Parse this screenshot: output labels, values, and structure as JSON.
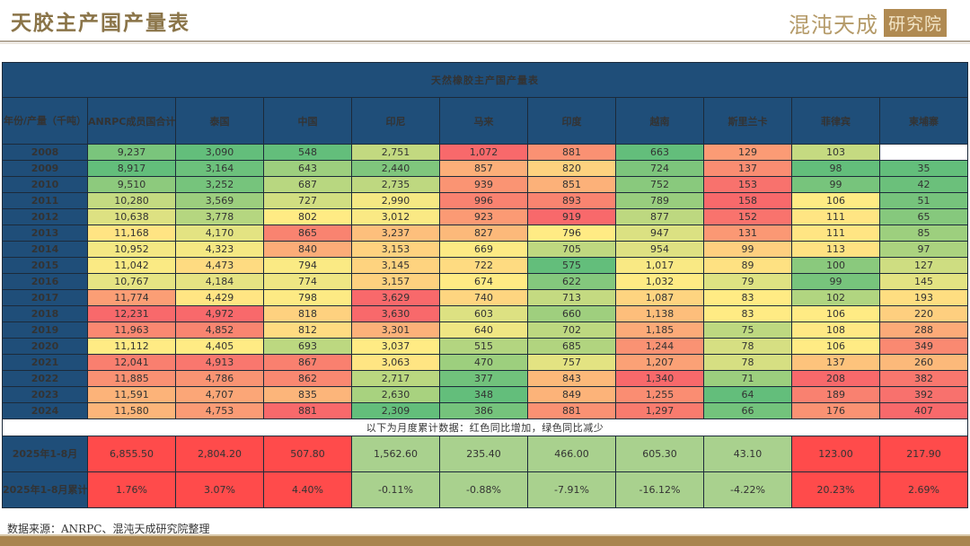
{
  "header": {
    "title": "天胶主产国产量表",
    "logo_text": "混沌天成",
    "logo_box": "研究院"
  },
  "table": {
    "banner": "天然橡胶主产国产量表",
    "corner_label": "年份/产量（千吨）",
    "columns": [
      "ANRPC成员国合计",
      "泰国",
      "中国",
      "印尼",
      "马来",
      "印度",
      "越南",
      "斯里兰卡",
      "菲律宾",
      "柬埔寨"
    ],
    "rows": [
      {
        "year": "2008",
        "values": [
          "9,237",
          "3,090",
          "548",
          "2,751",
          "1,072",
          "881",
          "663",
          "129",
          "103",
          ""
        ]
      },
      {
        "year": "2009",
        "values": [
          "8,917",
          "3,164",
          "643",
          "2,440",
          "857",
          "820",
          "724",
          "137",
          "98",
          "35"
        ]
      },
      {
        "year": "2010",
        "values": [
          "9,510",
          "3,252",
          "687",
          "2,735",
          "939",
          "851",
          "752",
          "153",
          "99",
          "42"
        ]
      },
      {
        "year": "2011",
        "values": [
          "10,280",
          "3,569",
          "727",
          "2,990",
          "996",
          "893",
          "789",
          "158",
          "106",
          "51"
        ]
      },
      {
        "year": "2012",
        "values": [
          "10,638",
          "3,778",
          "802",
          "3,012",
          "923",
          "919",
          "877",
          "152",
          "111",
          "65"
        ]
      },
      {
        "year": "2013",
        "values": [
          "11,168",
          "4,170",
          "865",
          "3,237",
          "827",
          "796",
          "947",
          "131",
          "111",
          "85"
        ]
      },
      {
        "year": "2014",
        "values": [
          "10,952",
          "4,323",
          "840",
          "3,153",
          "669",
          "705",
          "954",
          "99",
          "113",
          "97"
        ]
      },
      {
        "year": "2015",
        "values": [
          "11,042",
          "4,473",
          "794",
          "3,145",
          "722",
          "575",
          "1,017",
          "89",
          "100",
          "127"
        ]
      },
      {
        "year": "2016",
        "values": [
          "10,767",
          "4,184",
          "774",
          "3,157",
          "674",
          "622",
          "1,032",
          "79",
          "99",
          "145"
        ]
      },
      {
        "year": "2017",
        "values": [
          "11,774",
          "4,429",
          "798",
          "3,629",
          "740",
          "713",
          "1,087",
          "83",
          "102",
          "193"
        ]
      },
      {
        "year": "2018",
        "values": [
          "12,231",
          "4,972",
          "818",
          "3,630",
          "603",
          "660",
          "1,138",
          "83",
          "106",
          "220"
        ]
      },
      {
        "year": "2019",
        "values": [
          "11,963",
          "4,852",
          "812",
          "3,301",
          "640",
          "702",
          "1,185",
          "75",
          "108",
          "288"
        ]
      },
      {
        "year": "2020",
        "values": [
          "11,112",
          "4,405",
          "693",
          "3,037",
          "515",
          "685",
          "1,244",
          "78",
          "106",
          "349"
        ]
      },
      {
        "year": "2021",
        "values": [
          "12,041",
          "4,913",
          "867",
          "3,063",
          "470",
          "757",
          "1,207",
          "78",
          "137",
          "260"
        ]
      },
      {
        "year": "2022",
        "values": [
          "11,885",
          "4,786",
          "862",
          "2,717",
          "377",
          "843",
          "1,340",
          "71",
          "208",
          "382"
        ]
      },
      {
        "year": "2023",
        "values": [
          "11,591",
          "4,707",
          "835",
          "2,630",
          "348",
          "849",
          "1,255",
          "64",
          "189",
          "392"
        ]
      },
      {
        "year": "2024",
        "values": [
          "11,580",
          "4,753",
          "881",
          "2,309",
          "386",
          "881",
          "1,297",
          "66",
          "176",
          "407"
        ]
      }
    ],
    "note": "以下为月度累计数据：红色同比增加，绿色同比减少",
    "cumulative": {
      "label": "2025年1-8月",
      "values": [
        "6,855.50",
        "2,804.20",
        "507.80",
        "1,562.60",
        "235.40",
        "466.00",
        "605.30",
        "43.10",
        "123.00",
        "217.90"
      ]
    },
    "yoy": {
      "label": "2025年1-8月累计同比",
      "values": [
        "1.76%",
        "3.07%",
        "4.40%",
        "-0.11%",
        "-0.88%",
        "-7.91%",
        "-16.12%",
        "-4.22%",
        "20.23%",
        "2.69%"
      ]
    },
    "colors": {
      "header_bg": "#1f4e79",
      "scale_low": "#63be7b",
      "scale_mid": "#ffeb84",
      "scale_high": "#f8696b",
      "increase": "#ff4b4b",
      "decrease": "#a9d18e"
    }
  },
  "footer": {
    "source": "数据来源：ANRPC、混沌天成研究院整理"
  }
}
